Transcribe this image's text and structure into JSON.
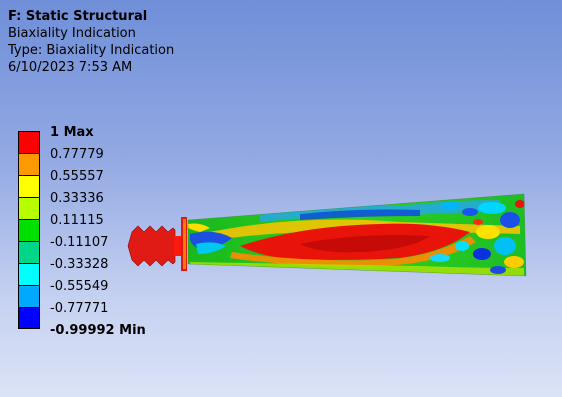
{
  "header": {
    "title": "F: Static Structural",
    "result_name": "Biaxiality Indication",
    "type_line": "Type: Biaxiality Indication",
    "timestamp": "6/10/2023 7:53 AM"
  },
  "legend": {
    "labels": [
      "1 Max",
      "0.77779",
      "0.55557",
      "0.33336",
      "0.11115",
      "-0.11107",
      "-0.33328",
      "-0.55549",
      "-0.77771",
      "-0.99992 Min"
    ],
    "colors": [
      "#ff0000",
      "#ff9900",
      "#ffff00",
      "#b5ff00",
      "#00e000",
      "#00d68a",
      "#00ffff",
      "#00a8ff",
      "#0000ff"
    ]
  },
  "colors": {
    "background_top": "#6f8fd8",
    "background_bottom": "#dbe3f7"
  }
}
